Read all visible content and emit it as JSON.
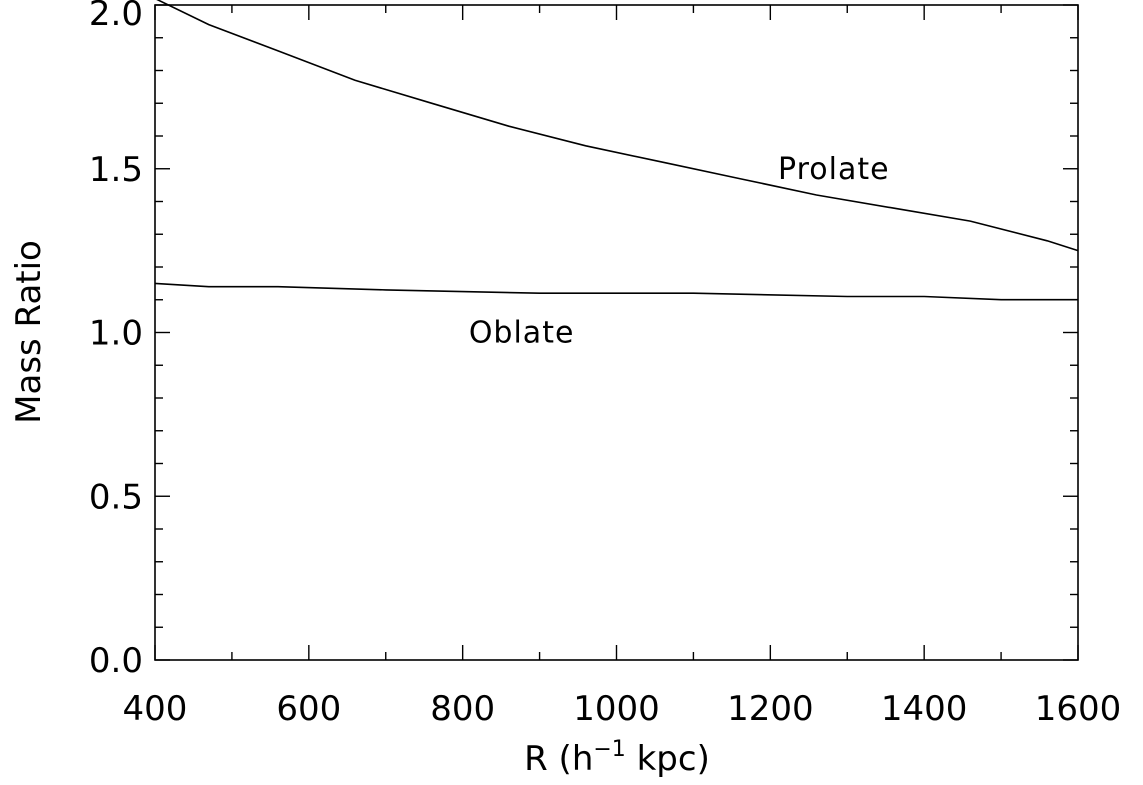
{
  "chart_data": {
    "type": "line",
    "title": "",
    "xlabel_main": "R (h",
    "xlabel_sup": "−1",
    "xlabel_tail": " kpc)",
    "ylabel": "Mass Ratio",
    "xlim": [
      400,
      1600
    ],
    "ylim": [
      0.0,
      2.0
    ],
    "x_ticks": [
      400,
      600,
      800,
      1000,
      1200,
      1400,
      1600
    ],
    "x_tick_labels": [
      "400",
      "600",
      "800",
      "1000",
      "1200",
      "1400",
      "1600"
    ],
    "x_minor_step": 100,
    "y_ticks": [
      0.0,
      0.5,
      1.0,
      1.5,
      2.0
    ],
    "y_tick_labels": [
      "0.0",
      "0.5",
      "1.0",
      "1.5",
      "2.0"
    ],
    "y_minor_step": 0.1,
    "grid": false,
    "series": [
      {
        "x": [
          400,
          470,
          560,
          660,
          760,
          860,
          960,
          1060,
          1160,
          1260,
          1360,
          1460,
          1560,
          1600
        ],
        "values": [
          2.02,
          1.94,
          1.86,
          1.77,
          1.7,
          1.63,
          1.57,
          1.52,
          1.47,
          1.42,
          1.38,
          1.34,
          1.28,
          1.25
        ]
      },
      {
        "x": [
          400,
          470,
          560,
          700,
          900,
          1100,
          1300,
          1400,
          1500,
          1600
        ],
        "values": [
          1.15,
          1.14,
          1.14,
          1.13,
          1.12,
          1.12,
          1.11,
          1.11,
          1.1,
          1.1
        ]
      }
    ],
    "annotations": [
      {
        "text": "Prolate",
        "x": 1210,
        "y": 1.5
      },
      {
        "text": "Oblate",
        "x": 808,
        "y": 1.0
      }
    ]
  }
}
